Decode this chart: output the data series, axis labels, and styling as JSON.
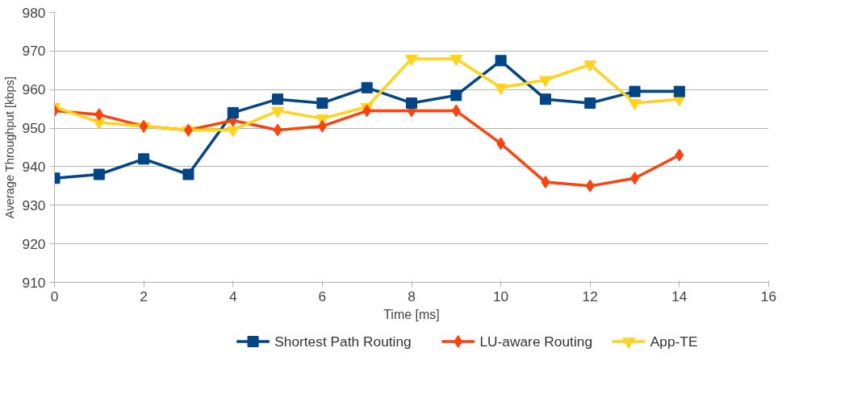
{
  "chart_data": {
    "type": "line",
    "xlabel": "Time [ms]",
    "ylabel": "Average Throughput [kbps]",
    "x": [
      0,
      1,
      2,
      3,
      4,
      5,
      6,
      7,
      8,
      9,
      10,
      11,
      12,
      13,
      14
    ],
    "xlim": [
      0,
      16
    ],
    "xticks": [
      0,
      2,
      4,
      6,
      8,
      10,
      12,
      14,
      16
    ],
    "ylim": [
      910,
      980
    ],
    "yticks": [
      910,
      920,
      930,
      940,
      950,
      960,
      970,
      980
    ],
    "grid": "y",
    "legend": "bottom",
    "series": [
      {
        "name": "Shortest Path Routing",
        "color": "#004586",
        "marker": "square",
        "values": [
          937,
          938,
          942,
          938,
          954,
          957.5,
          956.5,
          960.5,
          956.5,
          958.5,
          967.5,
          957.5,
          956.5,
          959.5,
          959.5
        ]
      },
      {
        "name": "LU-aware Routing",
        "color": "#ff420e",
        "marker": "diamond",
        "values": [
          954.5,
          953.5,
          950.5,
          949.5,
          952,
          949.5,
          950.5,
          954.5,
          954.5,
          954.5,
          946,
          936,
          935,
          937,
          943
        ]
      },
      {
        "name": "App-TE",
        "color": "#ffd320",
        "marker": "triangle",
        "values": [
          955.5,
          951.5,
          950.5,
          949.5,
          949.5,
          954.5,
          952.5,
          955.5,
          968,
          968,
          960.5,
          962.5,
          966.5,
          956.5,
          957.5
        ]
      }
    ]
  }
}
